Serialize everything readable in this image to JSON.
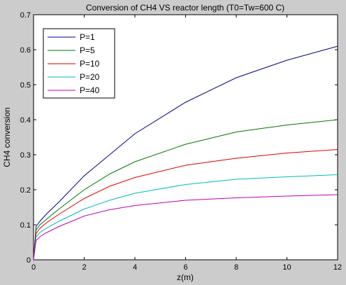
{
  "chart_data": {
    "type": "line",
    "title": "Conversion of CH4 VS reactor length (T0=Tw=600 C)",
    "xlabel": "z(m)",
    "ylabel": "CH4 conversion",
    "xlim": [
      0,
      12
    ],
    "ylim": [
      0,
      0.7
    ],
    "xticks": [
      0,
      2,
      4,
      6,
      8,
      10,
      12
    ],
    "yticks": [
      0,
      0.1,
      0.2,
      0.3,
      0.4,
      0.5,
      0.6,
      0.7
    ],
    "grid": false,
    "legend_position": "top-left",
    "x": [
      0,
      0.1,
      0.25,
      0.5,
      1,
      2,
      3,
      4,
      6,
      8,
      10,
      12
    ],
    "series": [
      {
        "name": "P=1",
        "color": "#00008b",
        "values": [
          0,
          0.095,
          0.11,
          0.13,
          0.165,
          0.24,
          0.3,
          0.36,
          0.45,
          0.52,
          0.57,
          0.61
        ]
      },
      {
        "name": "P=5",
        "color": "#007700",
        "values": [
          0,
          0.085,
          0.1,
          0.115,
          0.145,
          0.2,
          0.245,
          0.28,
          0.33,
          0.365,
          0.385,
          0.4
        ]
      },
      {
        "name": "P=10",
        "color": "#dd0000",
        "values": [
          0,
          0.075,
          0.09,
          0.105,
          0.13,
          0.175,
          0.21,
          0.235,
          0.27,
          0.29,
          0.305,
          0.315
        ]
      },
      {
        "name": "P=20",
        "color": "#00bbbb",
        "values": [
          0,
          0.065,
          0.078,
          0.09,
          0.11,
          0.145,
          0.17,
          0.19,
          0.215,
          0.23,
          0.237,
          0.243
        ]
      },
      {
        "name": "P=40",
        "color": "#bb00bb",
        "values": [
          0,
          0.055,
          0.066,
          0.077,
          0.095,
          0.125,
          0.143,
          0.155,
          0.17,
          0.177,
          0.182,
          0.186
        ]
      }
    ]
  }
}
